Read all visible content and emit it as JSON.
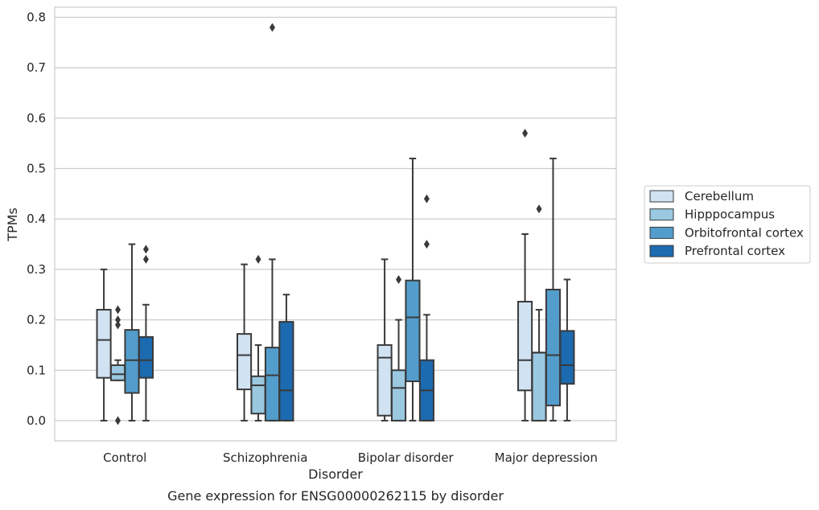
{
  "chart_data": {
    "type": "boxplot",
    "title": "Gene expression for ENSG00000262115 by disorder",
    "xlabel": "Disorder",
    "ylabel": "TPMs",
    "ylim": [
      -0.04,
      0.82
    ],
    "yticks": [
      "0.0",
      "0.1",
      "0.2",
      "0.3",
      "0.4",
      "0.5",
      "0.6",
      "0.7",
      "0.8"
    ],
    "grid": "horizontal",
    "legend_position": "right",
    "categories": [
      "Control",
      "Schizophrenia",
      "Bipolar disorder",
      "Major depression"
    ],
    "series": [
      {
        "name": "Cerebellum",
        "color": "#d1e2f2",
        "boxes": [
          {
            "whislo": 0.0,
            "q1": 0.085,
            "med": 0.16,
            "q3": 0.22,
            "whishi": 0.3,
            "fliers": []
          },
          {
            "whislo": 0.0,
            "q1": 0.062,
            "med": 0.13,
            "q3": 0.172,
            "whishi": 0.31,
            "fliers": []
          },
          {
            "whislo": 0.0,
            "q1": 0.01,
            "med": 0.125,
            "q3": 0.15,
            "whishi": 0.32,
            "fliers": []
          },
          {
            "whislo": 0.0,
            "q1": 0.06,
            "med": 0.12,
            "q3": 0.236,
            "whishi": 0.37,
            "fliers": [
              0.57
            ]
          }
        ]
      },
      {
        "name": "Hipppocampus",
        "color": "#9ac8e0",
        "boxes": [
          {
            "whislo": 0.08,
            "q1": 0.08,
            "med": 0.092,
            "q3": 0.11,
            "whishi": 0.12,
            "fliers": [
              0.22,
              0.2,
              0.19,
              0.0
            ]
          },
          {
            "whislo": 0.0,
            "q1": 0.014,
            "med": 0.07,
            "q3": 0.088,
            "whishi": 0.15,
            "fliers": [
              0.32
            ]
          },
          {
            "whislo": 0.0,
            "q1": 0.0,
            "med": 0.065,
            "q3": 0.1,
            "whishi": 0.2,
            "fliers": [
              0.28
            ]
          },
          {
            "whislo": 0.0,
            "q1": 0.0,
            "med": 0.135,
            "q3": 0.135,
            "whishi": 0.22,
            "fliers": [
              0.42
            ]
          }
        ]
      },
      {
        "name": "Orbitofrontal cortex",
        "color": "#529dcc",
        "boxes": [
          {
            "whislo": 0.0,
            "q1": 0.055,
            "med": 0.12,
            "q3": 0.18,
            "whishi": 0.35,
            "fliers": []
          },
          {
            "whislo": 0.0,
            "q1": 0.0,
            "med": 0.09,
            "q3": 0.145,
            "whishi": 0.32,
            "fliers": [
              0.78
            ]
          },
          {
            "whislo": 0.0,
            "q1": 0.078,
            "med": 0.205,
            "q3": 0.278,
            "whishi": 0.52,
            "fliers": []
          },
          {
            "whislo": 0.0,
            "q1": 0.03,
            "med": 0.13,
            "q3": 0.26,
            "whishi": 0.52,
            "fliers": []
          }
        ]
      },
      {
        "name": "Prefrontal cortex",
        "color": "#1c6aaf",
        "boxes": [
          {
            "whislo": 0.0,
            "q1": 0.085,
            "med": 0.12,
            "q3": 0.166,
            "whishi": 0.23,
            "fliers": [
              0.34,
              0.32
            ]
          },
          {
            "whislo": 0.0,
            "q1": 0.0,
            "med": 0.06,
            "q3": 0.196,
            "whishi": 0.25,
            "fliers": []
          },
          {
            "whislo": 0.0,
            "q1": 0.0,
            "med": 0.06,
            "q3": 0.12,
            "whishi": 0.21,
            "fliers": [
              0.44,
              0.35
            ]
          },
          {
            "whislo": 0.0,
            "q1": 0.073,
            "med": 0.11,
            "q3": 0.178,
            "whishi": 0.28,
            "fliers": []
          }
        ]
      }
    ]
  }
}
